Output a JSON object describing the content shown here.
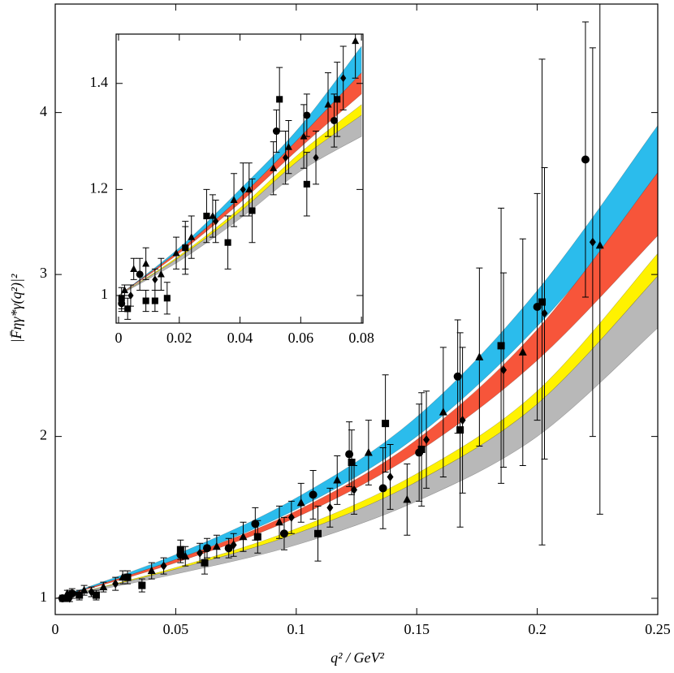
{
  "chart_data": [
    {
      "type": "band-errorbar",
      "xlabel": "q² / GeV²",
      "ylabel": "|F̄ηγ*γ(q²)|²",
      "xlim": [
        0,
        0.25
      ],
      "ylim": [
        0.9,
        4.67
      ],
      "xticks": [
        0,
        0.05,
        0.1,
        0.15,
        0.2,
        0.25
      ],
      "yticks": [
        1,
        2,
        3,
        4
      ],
      "bands": [
        {
          "color": "#2bbcec",
          "x": [
            0,
            0.05,
            0.1,
            0.15,
            0.2,
            0.25
          ],
          "upper": [
            1,
            1.27,
            1.62,
            2.12,
            2.9,
            3.92
          ],
          "lower": [
            1,
            1.24,
            1.55,
            2.0,
            2.68,
            3.56
          ]
        },
        {
          "color": "#f7553a",
          "x": [
            0,
            0.05,
            0.1,
            0.15,
            0.2,
            0.25
          ],
          "upper": [
            1,
            1.24,
            1.54,
            1.98,
            2.66,
            3.63
          ],
          "lower": [
            1,
            1.22,
            1.5,
            1.9,
            2.47,
            3.24
          ]
        },
        {
          "color": "#fff200",
          "x": [
            0,
            0.05,
            0.1,
            0.15,
            0.2,
            0.25
          ],
          "upper": [
            1,
            1.19,
            1.43,
            1.77,
            2.28,
            3.13
          ],
          "lower": [
            1,
            1.18,
            1.4,
            1.72,
            2.2,
            2.99
          ]
        },
        {
          "color": "#b8b8b8",
          "x": [
            0,
            0.05,
            0.1,
            0.15,
            0.2,
            0.25
          ],
          "upper": [
            1,
            1.18,
            1.4,
            1.72,
            2.2,
            2.99
          ],
          "lower": [
            1,
            1.15,
            1.33,
            1.6,
            2.0,
            2.67
          ]
        }
      ],
      "series": [
        {
          "marker": "circle",
          "x": [
            0.003,
            0.007,
            0.052,
            0.063,
            0.072,
            0.083,
            0.095,
            0.107,
            0.122,
            0.136,
            0.151,
            0.167,
            0.2,
            0.22
          ],
          "values": [
            1.0,
            1.03,
            1.27,
            1.31,
            1.31,
            1.46,
            1.4,
            1.64,
            1.89,
            1.68,
            1.9,
            2.37,
            2.8,
            3.71
          ],
          "errors": [
            0.02,
            0.03,
            0.05,
            0.06,
            0.06,
            0.1,
            0.1,
            0.15,
            0.2,
            0.25,
            0.3,
            0.35,
            0.7,
            0.85
          ]
        },
        {
          "marker": "square",
          "x": [
            0.004,
            0.01,
            0.017,
            0.03,
            0.036,
            0.052,
            0.062,
            0.084,
            0.109,
            0.123,
            0.137,
            0.152,
            0.168,
            0.185,
            0.202
          ],
          "values": [
            1.0,
            1.02,
            1.02,
            1.13,
            1.08,
            1.3,
            1.22,
            1.38,
            1.4,
            1.84,
            2.08,
            1.92,
            2.04,
            2.56,
            2.83
          ],
          "errors": [
            0.02,
            0.03,
            0.03,
            0.04,
            0.04,
            0.06,
            0.07,
            0.1,
            0.17,
            0.2,
            0.3,
            0.35,
            0.6,
            0.85,
            1.5
          ]
        },
        {
          "marker": "triangle",
          "x": [
            0.005,
            0.012,
            0.02,
            0.028,
            0.04,
            0.054,
            0.067,
            0.078,
            0.093,
            0.102,
            0.117,
            0.13,
            0.146,
            0.161,
            0.176,
            0.194,
            0.226
          ],
          "values": [
            1.03,
            1.05,
            1.07,
            1.13,
            1.17,
            1.26,
            1.32,
            1.38,
            1.47,
            1.59,
            1.73,
            1.9,
            1.61,
            2.15,
            2.49,
            2.52,
            3.18
          ],
          "errors": [
            0.02,
            0.03,
            0.03,
            0.04,
            0.05,
            0.06,
            0.07,
            0.09,
            0.1,
            0.12,
            0.15,
            0.2,
            0.22,
            0.4,
            0.55,
            0.7,
            1.66
          ]
        },
        {
          "marker": "diamond",
          "x": [
            0.006,
            0.015,
            0.025,
            0.045,
            0.06,
            0.074,
            0.098,
            0.114,
            0.124,
            0.139,
            0.154,
            0.169,
            0.186,
            0.203,
            0.223
          ],
          "values": [
            1.0,
            1.04,
            1.09,
            1.2,
            1.28,
            1.33,
            1.5,
            1.56,
            1.67,
            1.75,
            1.98,
            2.1,
            2.41,
            2.76,
            3.2
          ],
          "errors": [
            0.02,
            0.03,
            0.04,
            0.05,
            0.06,
            0.07,
            0.1,
            0.12,
            0.15,
            0.2,
            0.3,
            0.45,
            0.6,
            0.9,
            1.2
          ]
        }
      ]
    },
    {
      "type": "band-errorbar",
      "xlim": [
        -0.0008,
        0.0805
      ],
      "ylim": [
        0.948,
        1.493
      ],
      "xticks": [
        0,
        0.02,
        0.04,
        0.06,
        0.08
      ],
      "yticks": [
        1,
        1.2,
        1.4
      ],
      "bands": [
        {
          "color": "#2bbcec",
          "x": [
            0,
            0.02,
            0.04,
            0.06,
            0.08
          ],
          "upper": [
            1,
            1.09,
            1.2,
            1.32,
            1.47
          ],
          "lower": [
            1,
            1.085,
            1.185,
            1.3,
            1.42
          ]
        },
        {
          "color": "#f7553a",
          "x": [
            0,
            0.02,
            0.04,
            0.06,
            0.08
          ],
          "upper": [
            1,
            1.085,
            1.185,
            1.3,
            1.42
          ],
          "lower": [
            1,
            1.08,
            1.175,
            1.28,
            1.38
          ]
        },
        {
          "color": "#fff200",
          "x": [
            0,
            0.02,
            0.04,
            0.06,
            0.08
          ],
          "upper": [
            1,
            1.075,
            1.165,
            1.27,
            1.36
          ],
          "lower": [
            1,
            1.072,
            1.158,
            1.258,
            1.34
          ]
        },
        {
          "color": "#b8b8b8",
          "x": [
            0,
            0.02,
            0.04,
            0.06,
            0.08
          ],
          "upper": [
            1,
            1.072,
            1.158,
            1.258,
            1.34
          ],
          "lower": [
            1,
            1.065,
            1.145,
            1.235,
            1.3
          ]
        }
      ],
      "series": [
        {
          "marker": "circle",
          "x": [
            0.001,
            0.007,
            0.052,
            0.062,
            0.071
          ],
          "values": [
            0.985,
            1.04,
            1.31,
            1.34,
            1.33
          ],
          "errors": [
            0.015,
            0.03,
            0.04,
            0.04,
            0.05
          ]
        },
        {
          "marker": "square",
          "x": [
            0.001,
            0.003,
            0.009,
            0.012,
            0.016,
            0.022,
            0.029,
            0.036,
            0.044,
            0.053,
            0.062,
            0.072
          ],
          "values": [
            0.995,
            0.975,
            0.99,
            0.99,
            0.995,
            1.09,
            1.15,
            1.1,
            1.16,
            1.37,
            1.21,
            1.37
          ],
          "errors": [
            0.02,
            0.02,
            0.02,
            0.02,
            0.03,
            0.05,
            0.05,
            0.05,
            0.06,
            0.06,
            0.06,
            0.07
          ]
        },
        {
          "marker": "triangle",
          "x": [
            0.002,
            0.005,
            0.009,
            0.014,
            0.019,
            0.024,
            0.031,
            0.038,
            0.043,
            0.051,
            0.056,
            0.061,
            0.069,
            0.078
          ],
          "values": [
            1.01,
            1.05,
            1.06,
            1.04,
            1.08,
            1.11,
            1.15,
            1.18,
            1.2,
            1.24,
            1.28,
            1.3,
            1.36,
            1.48
          ],
          "errors": [
            0.01,
            0.02,
            0.03,
            0.03,
            0.03,
            0.04,
            0.04,
            0.05,
            0.05,
            0.05,
            0.05,
            0.06,
            0.06,
            0.07
          ]
        },
        {
          "marker": "diamond",
          "x": [
            0.004,
            0.012,
            0.022,
            0.032,
            0.041,
            0.055,
            0.065,
            0.074
          ],
          "values": [
            1.0,
            1.03,
            1.09,
            1.14,
            1.2,
            1.26,
            1.26,
            1.41
          ],
          "errors": [
            0.02,
            0.02,
            0.04,
            0.04,
            0.05,
            0.05,
            0.05,
            0.06
          ]
        }
      ]
    }
  ]
}
